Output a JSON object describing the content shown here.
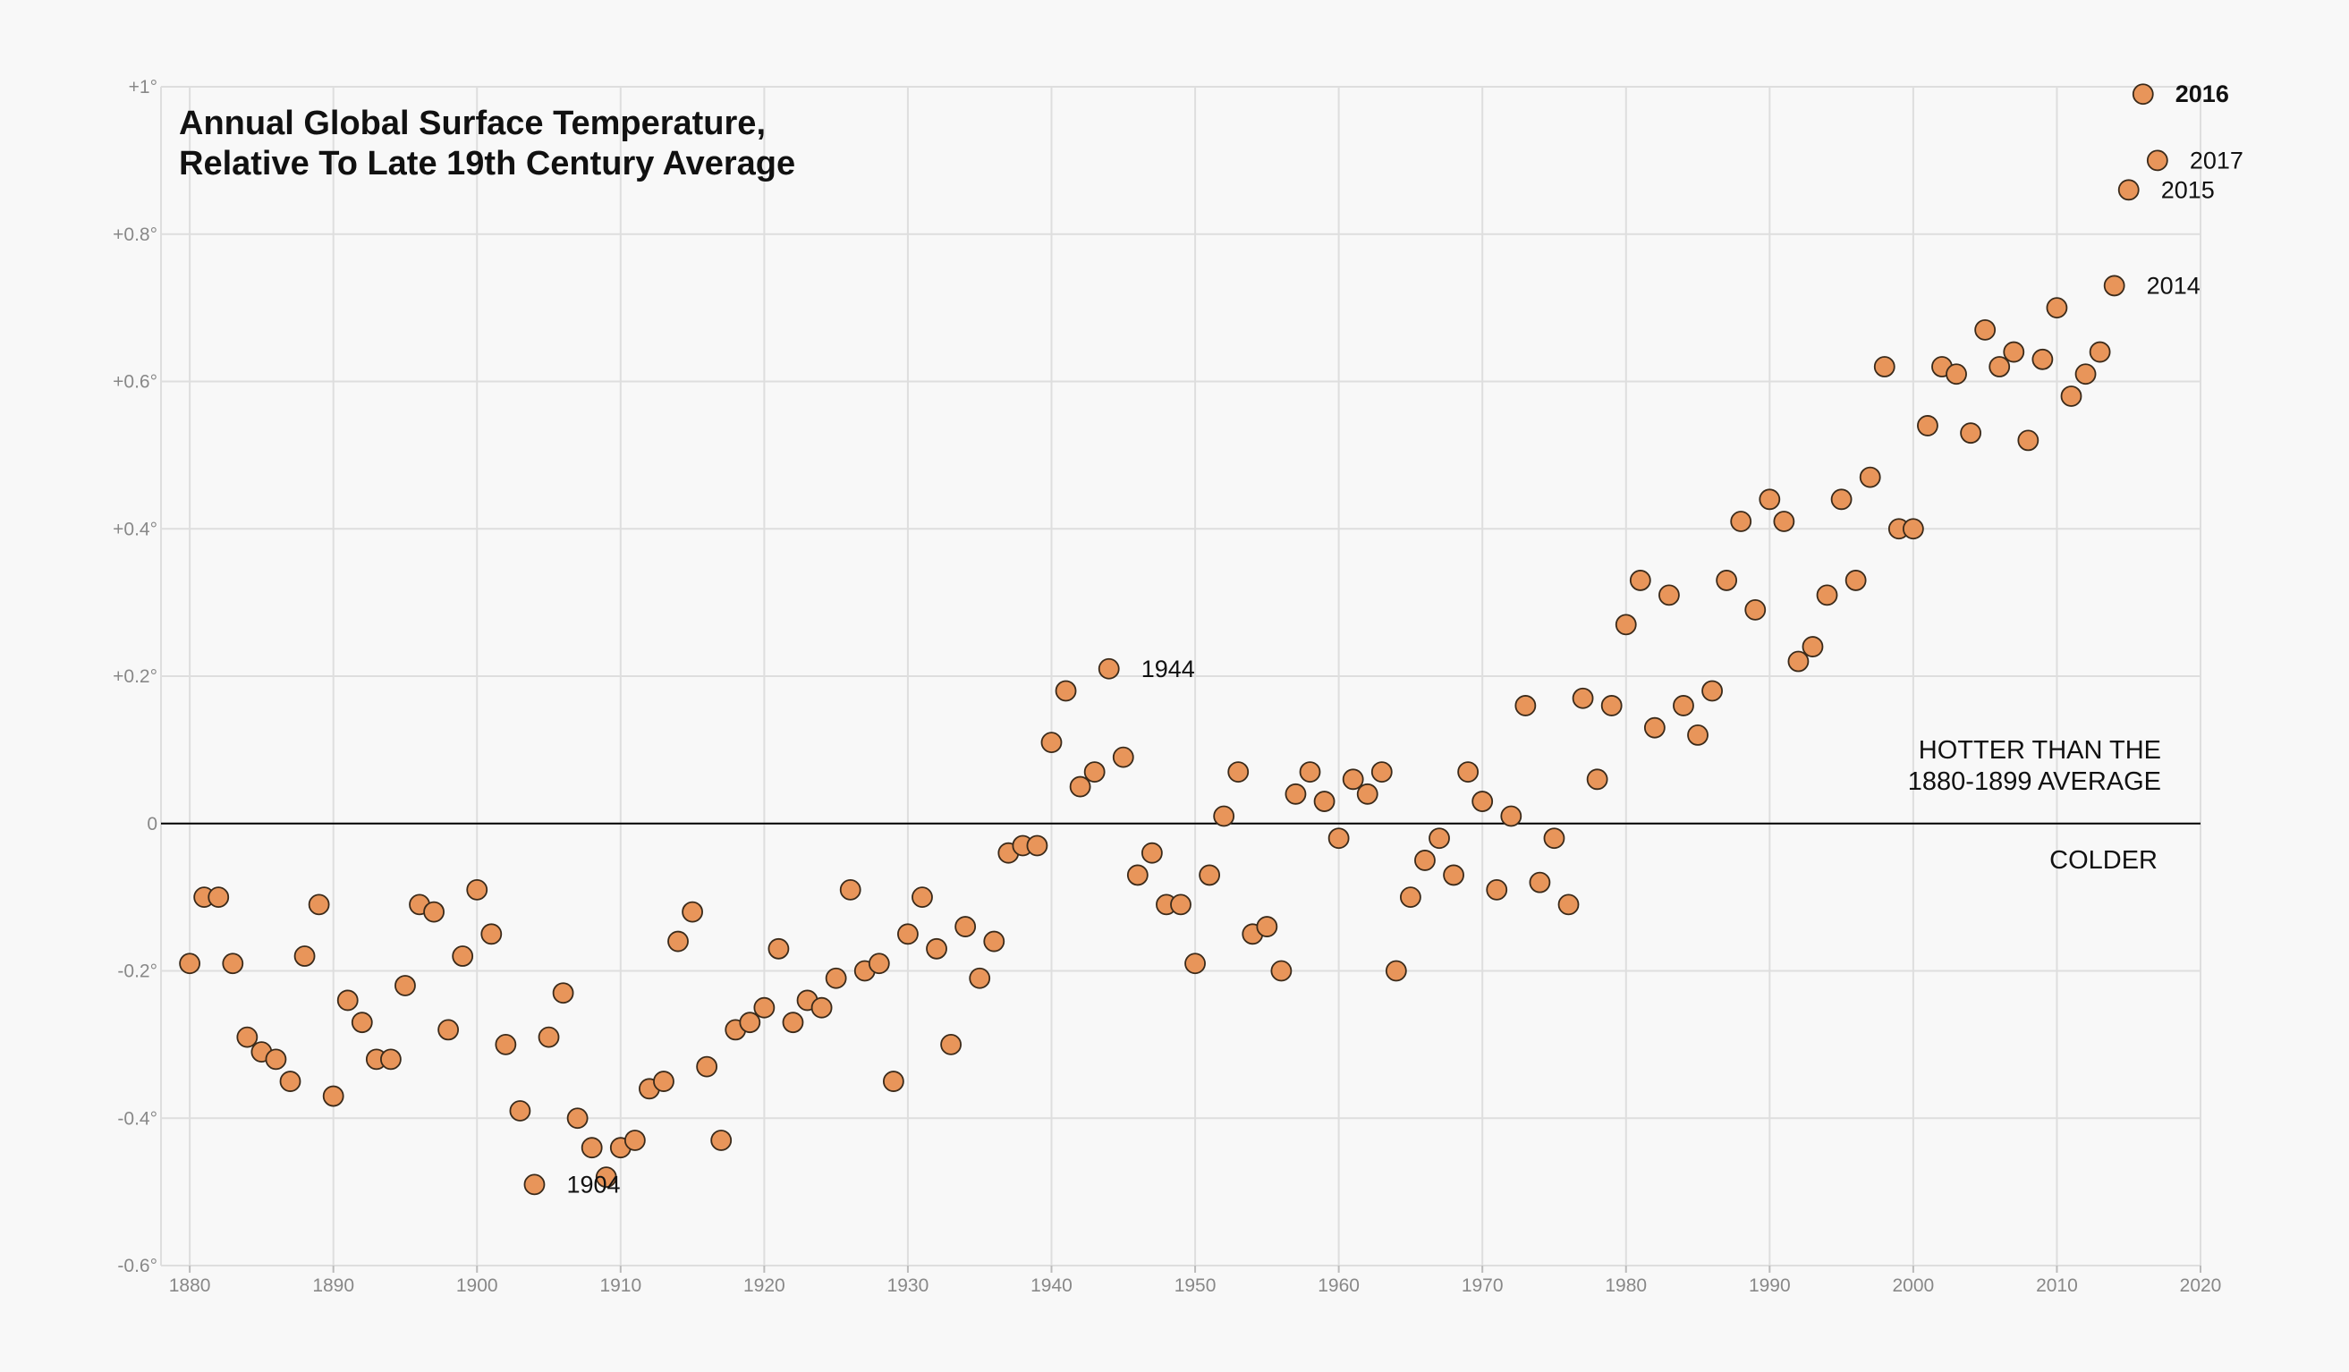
{
  "chart_data": {
    "type": "scatter",
    "title_lines": [
      "Annual Global Surface Temperature,",
      "Relative To Late 19th Century Average"
    ],
    "xlim": [
      1878,
      2020
    ],
    "ylim": [
      -0.6,
      1.0
    ],
    "grid": true,
    "x_ticks": [
      1880,
      1890,
      1900,
      1910,
      1920,
      1930,
      1940,
      1950,
      1960,
      1970,
      1980,
      1990,
      2000,
      2010,
      2020
    ],
    "y_ticks": [
      {
        "value": 1.0,
        "label": "+1°"
      },
      {
        "value": 0.8,
        "label": "+0.8°"
      },
      {
        "value": 0.6,
        "label": "+0.6°"
      },
      {
        "value": 0.4,
        "label": "+0.4°"
      },
      {
        "value": 0.2,
        "label": "+0.2°"
      },
      {
        "value": 0,
        "label": "0"
      },
      {
        "value": -0.2,
        "label": "-0.2°"
      },
      {
        "value": -0.4,
        "label": "-0.4°"
      },
      {
        "value": -0.6,
        "label": "-0.6°"
      }
    ],
    "region_labels": {
      "above": [
        "HOTTER THAN THE",
        "1880-1899 AVERAGE"
      ],
      "below": "COLDER"
    },
    "point_color": "#e8955a",
    "point_stroke": "#3a2a1a",
    "baseline_color": "#000000",
    "annotations": [
      {
        "x": 1904,
        "y": -0.49,
        "label": "1904",
        "bold": false
      },
      {
        "x": 1944,
        "y": 0.21,
        "label": "1944",
        "bold": false
      },
      {
        "x": 2014,
        "y": 0.73,
        "label": "2014",
        "bold": false
      },
      {
        "x": 2015,
        "y": 0.86,
        "label": "2015",
        "bold": false
      },
      {
        "x": 2016,
        "y": 0.99,
        "label": "2016",
        "bold": true
      },
      {
        "x": 2017,
        "y": 0.9,
        "label": "2017",
        "bold": false
      }
    ],
    "x": [
      1880,
      1881,
      1882,
      1883,
      1884,
      1885,
      1886,
      1887,
      1888,
      1889,
      1890,
      1891,
      1892,
      1893,
      1894,
      1895,
      1896,
      1897,
      1898,
      1899,
      1900,
      1901,
      1902,
      1903,
      1904,
      1905,
      1906,
      1907,
      1908,
      1909,
      1910,
      1911,
      1912,
      1913,
      1914,
      1915,
      1916,
      1917,
      1918,
      1919,
      1920,
      1921,
      1922,
      1923,
      1924,
      1925,
      1926,
      1927,
      1928,
      1929,
      1930,
      1931,
      1932,
      1933,
      1934,
      1935,
      1936,
      1937,
      1938,
      1939,
      1940,
      1941,
      1942,
      1943,
      1944,
      1945,
      1946,
      1947,
      1948,
      1949,
      1950,
      1951,
      1952,
      1953,
      1954,
      1955,
      1956,
      1957,
      1958,
      1959,
      1960,
      1961,
      1962,
      1963,
      1964,
      1965,
      1966,
      1967,
      1968,
      1969,
      1970,
      1971,
      1972,
      1973,
      1974,
      1975,
      1976,
      1977,
      1978,
      1979,
      1980,
      1981,
      1982,
      1983,
      1984,
      1985,
      1986,
      1987,
      1988,
      1989,
      1990,
      1991,
      1992,
      1993,
      1994,
      1995,
      1996,
      1997,
      1998,
      1999,
      2000,
      2001,
      2002,
      2003,
      2004,
      2005,
      2006,
      2007,
      2008,
      2009,
      2010,
      2011,
      2012,
      2013,
      2014,
      2015,
      2016,
      2017
    ],
    "y": [
      -0.19,
      -0.1,
      -0.1,
      -0.19,
      -0.29,
      -0.31,
      -0.32,
      -0.35,
      -0.18,
      -0.11,
      -0.37,
      -0.24,
      -0.27,
      -0.32,
      -0.32,
      -0.22,
      -0.11,
      -0.12,
      -0.28,
      -0.18,
      -0.09,
      -0.15,
      -0.3,
      -0.39,
      -0.49,
      -0.29,
      -0.23,
      -0.4,
      -0.44,
      -0.48,
      -0.44,
      -0.43,
      -0.36,
      -0.35,
      -0.16,
      -0.12,
      -0.33,
      -0.43,
      -0.28,
      -0.27,
      -0.25,
      -0.17,
      -0.27,
      -0.24,
      -0.25,
      -0.21,
      -0.09,
      -0.2,
      -0.19,
      -0.35,
      -0.15,
      -0.1,
      -0.17,
      -0.3,
      -0.14,
      -0.21,
      -0.16,
      -0.04,
      -0.03,
      -0.03,
      0.11,
      0.18,
      0.05,
      0.07,
      0.21,
      0.09,
      -0.07,
      -0.04,
      -0.11,
      -0.11,
      -0.19,
      -0.07,
      0.01,
      0.07,
      -0.15,
      -0.14,
      -0.2,
      0.04,
      0.07,
      0.03,
      -0.02,
      0.06,
      0.04,
      0.07,
      -0.2,
      -0.1,
      -0.05,
      -0.02,
      -0.07,
      0.07,
      0.03,
      -0.09,
      0.01,
      0.16,
      -0.08,
      -0.02,
      -0.11,
      0.17,
      0.06,
      0.16,
      0.27,
      0.33,
      0.13,
      0.31,
      0.16,
      0.12,
      0.18,
      0.33,
      0.41,
      0.29,
      0.44,
      0.41,
      0.22,
      0.24,
      0.31,
      0.44,
      0.33,
      0.47,
      0.62,
      0.4,
      0.4,
      0.54,
      0.62,
      0.61,
      0.53,
      0.67,
      0.62,
      0.64,
      0.52,
      0.63,
      0.7,
      0.58,
      0.61,
      0.64,
      0.73,
      0.86,
      0.99,
      0.9
    ]
  }
}
